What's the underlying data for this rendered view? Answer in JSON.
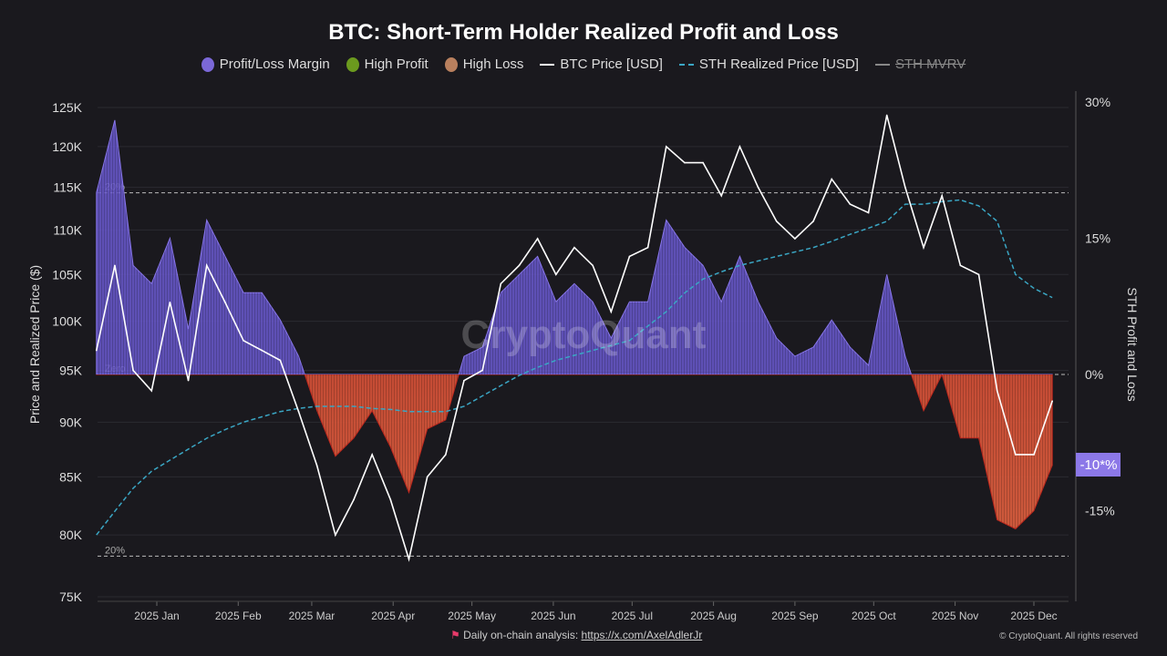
{
  "chart_data": {
    "type": "area",
    "title": "BTC: Short-Term Holder Realized Profit and Loss",
    "legend": [
      {
        "name": "Profit/Loss Margin",
        "color": "#7b68d8",
        "marker": "circle"
      },
      {
        "name": "High Profit",
        "color": "#6b9a1e",
        "marker": "circle"
      },
      {
        "name": "High Loss",
        "color": "#b9805e",
        "marker": "circle"
      },
      {
        "name": "BTC Price [USD]",
        "color": "#ffffff",
        "marker": "line"
      },
      {
        "name": "STH Realized Price [USD]",
        "color": "#3aa6c4",
        "marker": "dashed-line"
      },
      {
        "name": "STH MVRV",
        "color": "#888888",
        "marker": "line",
        "hidden": true
      }
    ],
    "legend_placement": "top-center",
    "ylabel_left": "Price and Realized Price ($)",
    "ylabel_right": "STH Profit and Loss",
    "y_left_scale": "log",
    "y_left_range": [
      75000,
      125000
    ],
    "y_left_ticks": [
      "75K",
      "80K",
      "85K",
      "90K",
      "95K",
      "100K",
      "105K",
      "110K",
      "115K",
      "120K",
      "125K"
    ],
    "y_right_range": [
      -25,
      30
    ],
    "y_right_ticks": [
      "30%",
      "15%",
      "0%",
      "-15%"
    ],
    "x_ticks": [
      "2025 Jan",
      "2025 Feb",
      "2025 Mar",
      "2025 Apr",
      "2025 May",
      "2025 Jun",
      "2025 Jul",
      "2025 Aug",
      "2025 Sep",
      "2025 Oct",
      "2025 Nov",
      "2025 Dec"
    ],
    "reference_lines": [
      {
        "value": 20,
        "label": "20%"
      },
      {
        "value": 0,
        "label": "Zero"
      },
      {
        "value": -20,
        "label": "20%"
      }
    ],
    "current_badge": "-10*%",
    "dates": [
      "2024-12-09",
      "2024-12-16",
      "2024-12-23",
      "2024-12-30",
      "2025-01-06",
      "2025-01-13",
      "2025-01-20",
      "2025-01-27",
      "2025-02-03",
      "2025-02-10",
      "2025-02-17",
      "2025-02-24",
      "2025-03-03",
      "2025-03-10",
      "2025-03-17",
      "2025-03-24",
      "2025-03-31",
      "2025-04-07",
      "2025-04-14",
      "2025-04-21",
      "2025-04-28",
      "2025-05-05",
      "2025-05-12",
      "2025-05-19",
      "2025-05-26",
      "2025-06-02",
      "2025-06-09",
      "2025-06-16",
      "2025-06-23",
      "2025-06-30",
      "2025-07-07",
      "2025-07-14",
      "2025-07-21",
      "2025-07-28",
      "2025-08-04",
      "2025-08-11",
      "2025-08-18",
      "2025-08-25",
      "2025-09-01",
      "2025-09-08",
      "2025-09-15",
      "2025-09-22",
      "2025-09-29",
      "2025-10-06",
      "2025-10-13",
      "2025-10-20",
      "2025-10-27",
      "2025-11-03",
      "2025-11-10",
      "2025-11-17",
      "2025-11-24",
      "2025-12-01",
      "2025-12-08"
    ],
    "series": [
      {
        "name": "BTC Price [USD]",
        "values": [
          97000,
          106000,
          95000,
          93000,
          102000,
          94000,
          106000,
          102000,
          98000,
          97000,
          96000,
          91000,
          86000,
          80000,
          83000,
          87000,
          83000,
          78000,
          85000,
          87000,
          94000,
          95000,
          104000,
          106000,
          109000,
          105000,
          108000,
          106000,
          101000,
          107000,
          108000,
          120000,
          118000,
          118000,
          114000,
          120000,
          115000,
          111000,
          109000,
          111000,
          116000,
          113000,
          112000,
          124000,
          115000,
          108000,
          114000,
          106000,
          105000,
          93000,
          87000,
          87000,
          92000
        ]
      },
      {
        "name": "STH Realized Price [USD]",
        "values": [
          80000,
          82000,
          84000,
          85500,
          86500,
          87500,
          88500,
          89300,
          90000,
          90500,
          91000,
          91300,
          91500,
          91500,
          91500,
          91300,
          91200,
          91000,
          91000,
          91000,
          91500,
          92500,
          93500,
          94500,
          95300,
          96000,
          96500,
          97000,
          97500,
          98000,
          99500,
          101000,
          103000,
          104500,
          105300,
          106000,
          106500,
          107000,
          107500,
          108000,
          108700,
          109500,
          110200,
          111000,
          113000,
          113000,
          113300,
          113500,
          112800,
          111000,
          105000,
          103500,
          102500
        ]
      },
      {
        "name": "Profit/Loss Margin",
        "unit": "%",
        "values": [
          20,
          28,
          12,
          10,
          15,
          5,
          17,
          13,
          9,
          9,
          6,
          2,
          -4,
          -9,
          -7,
          -4,
          -8,
          -13,
          -6,
          -5,
          2,
          3,
          9,
          11,
          13,
          8,
          10,
          8,
          4,
          8,
          8,
          17,
          14,
          12,
          8,
          13,
          8,
          4,
          2,
          3,
          6,
          3,
          1,
          11,
          2,
          -4,
          0,
          -7,
          -7,
          -16,
          -17,
          -15,
          -10
        ]
      }
    ]
  },
  "watermark": "CryptoQuant",
  "footer": {
    "text": "Daily on-chain analysis:",
    "link": "https://x.com/AxelAdlerJr",
    "copyright": "© CryptoQuant. All rights reserved"
  }
}
